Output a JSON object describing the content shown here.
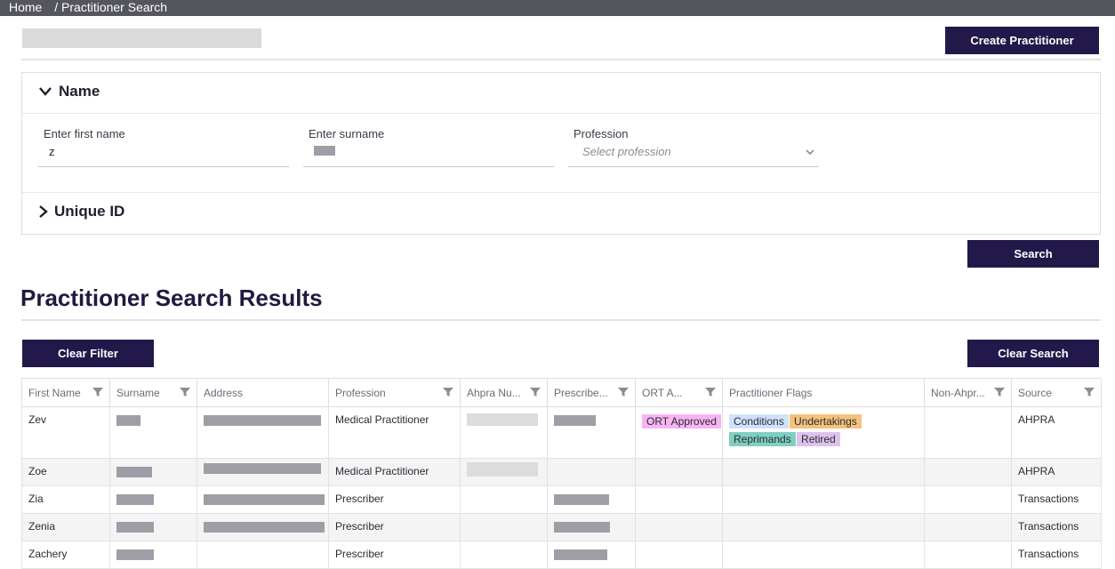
{
  "breadcrumb": {
    "home": "Home",
    "current": "/ Practitioner Search"
  },
  "buttons": {
    "create": "Create Practitioner",
    "search": "Search",
    "clear_filter": "Clear Filter",
    "clear_search": "Clear Search"
  },
  "name_section": {
    "title": "Name",
    "first_name_label": "Enter first name",
    "first_name_value": "z",
    "surname_label": "Enter surname",
    "profession_label": "Profession",
    "profession_placeholder": "Select profession"
  },
  "unique_id_section": {
    "title": "Unique ID"
  },
  "results_title": "Practitioner Search Results",
  "columns": [
    "First Name",
    "Surname",
    "Address",
    "Profession",
    "Ahpra Nu...",
    "Prescribe...",
    "ORT A...",
    "Practitioner Flags",
    "Non-Ahpr...",
    "Source"
  ],
  "rows": [
    {
      "first_name": "Zev",
      "profession": "Medical Practitioner",
      "ort": "ORT Approved",
      "flags": [
        "Conditions",
        "Undertakings",
        "Reprimands",
        "Retired"
      ],
      "source": "AHPRA"
    },
    {
      "first_name": "Zoe",
      "profession": "Medical Practitioner",
      "ort": "",
      "flags": [],
      "source": "AHPRA"
    },
    {
      "first_name": "Zia",
      "profession": "Prescriber",
      "ort": "",
      "flags": [],
      "source": "Transactions"
    },
    {
      "first_name": "Zenia",
      "profession": "Prescriber",
      "ort": "",
      "flags": [],
      "source": "Transactions"
    },
    {
      "first_name": "Zachery",
      "profession": "Prescriber",
      "ort": "",
      "flags": [],
      "source": "Transactions"
    }
  ],
  "colors": {
    "primary": "#22184a",
    "tag_ort": "#f7b4f2",
    "tag_conditions": "#cfe2fb",
    "tag_undertakings": "#f4c27b",
    "tag_reprimands": "#7fcfc2",
    "tag_retired": "#dcc3ee"
  }
}
